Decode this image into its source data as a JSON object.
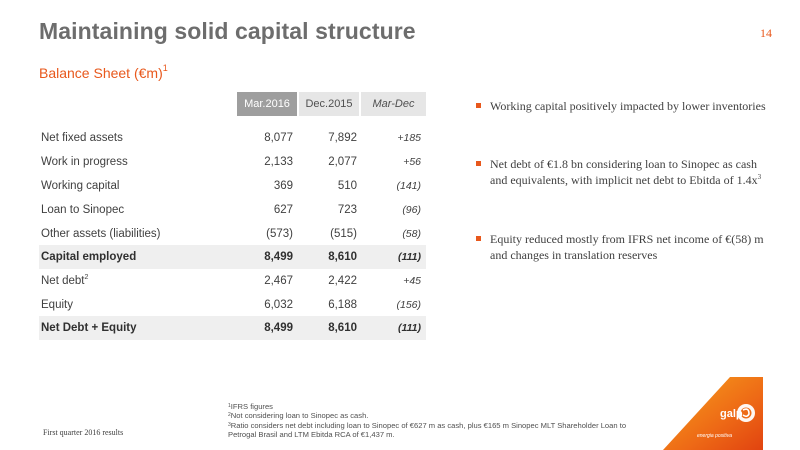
{
  "header": {
    "title": "Maintaining solid capital structure",
    "page_number": "14"
  },
  "balance_sheet": {
    "title": "Balance Sheet (€m)",
    "title_sup": "1",
    "columns": [
      "Mar.2016",
      "Dec.2015",
      "Mar-Dec"
    ],
    "rows": [
      {
        "label": "Net fixed assets",
        "sup": "",
        "mar": "8,077",
        "dec": "7,892",
        "var": "+185",
        "style": "normal"
      },
      {
        "label": "Work in progress",
        "sup": "",
        "mar": "2,133",
        "dec": "2,077",
        "var": "+56",
        "style": "normal"
      },
      {
        "label": "Working capital",
        "sup": "",
        "mar": "369",
        "dec": "510",
        "var": "(141)",
        "style": "normal"
      },
      {
        "label": "Loan to Sinopec",
        "sup": "",
        "mar": "627",
        "dec": "723",
        "var": "(96)",
        "style": "normal"
      },
      {
        "label": "Other assets (liabilities)",
        "sup": "",
        "mar": "(573)",
        "dec": "(515)",
        "var": "(58)",
        "style": "normal"
      },
      {
        "label": "Capital employed",
        "sup": "",
        "mar": "8,499",
        "dec": "8,610",
        "var": "(111)",
        "style": "total"
      },
      {
        "label": "Net debt",
        "sup": "2",
        "mar": "2,467",
        "dec": "2,422",
        "var": "+45",
        "style": "normal"
      },
      {
        "label": "Equity",
        "sup": "",
        "mar": "6,032",
        "dec": "6,188",
        "var": "(156)",
        "style": "normal"
      },
      {
        "label": "Net Debt + Equity",
        "sup": "",
        "mar": "8,499",
        "dec": "8,610",
        "var": "(111)",
        "style": "total"
      }
    ]
  },
  "bullets": [
    {
      "text": "Working capital positively impacted by lower inventories",
      "sup": ""
    },
    {
      "text": "Net debt of €1.8 bn considering loan to Sinopec as cash and equivalents, with implicit net debt to Ebitda of 1.4x",
      "sup": "3"
    },
    {
      "text": "Equity reduced mostly from IFRS net income of €(58) m and changes in translation reserves",
      "sup": ""
    }
  ],
  "footnotes": [
    {
      "sup": "1",
      "text": "IFRS figures"
    },
    {
      "sup": "2",
      "text": "Not considering loan to Sinopec as cash."
    },
    {
      "sup": "3",
      "text": "Ratio considers net debt including loan to Sinopec of €627 m as cash, plus €165 m Sinopec MLT Shareholder Loan to Petrogal Brasil and LTM Ebitda RCA of €1,437 m."
    }
  ],
  "footer": {
    "left_text": "First quarter 2016 results"
  },
  "logo": {
    "brand": "galp",
    "tagline": "energia positiva",
    "icon": "galp-swirl-icon"
  },
  "colors": {
    "accent": "#e8581c",
    "title_gray": "#6d6d6d",
    "header_dark": "#9e9e9e",
    "header_light": "#e6e6e6",
    "row_shade": "#efefef"
  }
}
